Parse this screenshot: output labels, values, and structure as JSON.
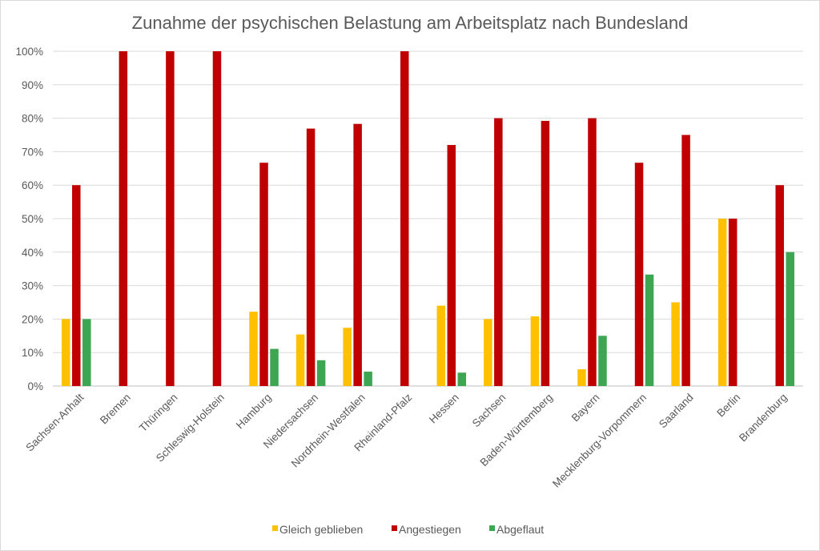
{
  "chart_data": {
    "type": "bar",
    "title": "Zunahme der psychischen Belastung am Arbeitsplatz nach Bundesland",
    "xlabel": "",
    "ylabel": "",
    "ylim": [
      0,
      100
    ],
    "yticks": [
      "0%",
      "10%",
      "20%",
      "30%",
      "40%",
      "50%",
      "60%",
      "70%",
      "80%",
      "90%",
      "100%"
    ],
    "grid": true,
    "legend_position": "bottom",
    "categories": [
      "Sachsen-Anhalt",
      "Bremen",
      "Thüringen",
      "Schleswig-Holstein",
      "Hamburg",
      "Niedersachsen",
      "Nordrhein-Westfalen",
      "Rheinland-Pfalz",
      "Hessen",
      "Sachsen",
      "Baden-Württemberg",
      "Bayern",
      "Mecklenburg-Vorpommern",
      "Saarland",
      "Berlin",
      "Brandenburg"
    ],
    "series": [
      {
        "name": "Gleich geblieben",
        "color": "#FFC000",
        "values": [
          20,
          0,
          0,
          0,
          22.2,
          15.4,
          17.4,
          0,
          24,
          20,
          20.8,
          5,
          0,
          25,
          50,
          0
        ]
      },
      {
        "name": "Angestiegen",
        "color": "#C00000",
        "values": [
          60,
          100,
          100,
          100,
          66.7,
          76.9,
          78.3,
          100,
          72,
          80,
          79.2,
          80,
          66.7,
          75,
          50,
          60
        ]
      },
      {
        "name": "Abgeflaut",
        "color": "#3CA653",
        "values": [
          20,
          0,
          0,
          0,
          11.1,
          7.7,
          4.3,
          0,
          4,
          0,
          0,
          15,
          33.3,
          0,
          0,
          40
        ]
      }
    ]
  }
}
